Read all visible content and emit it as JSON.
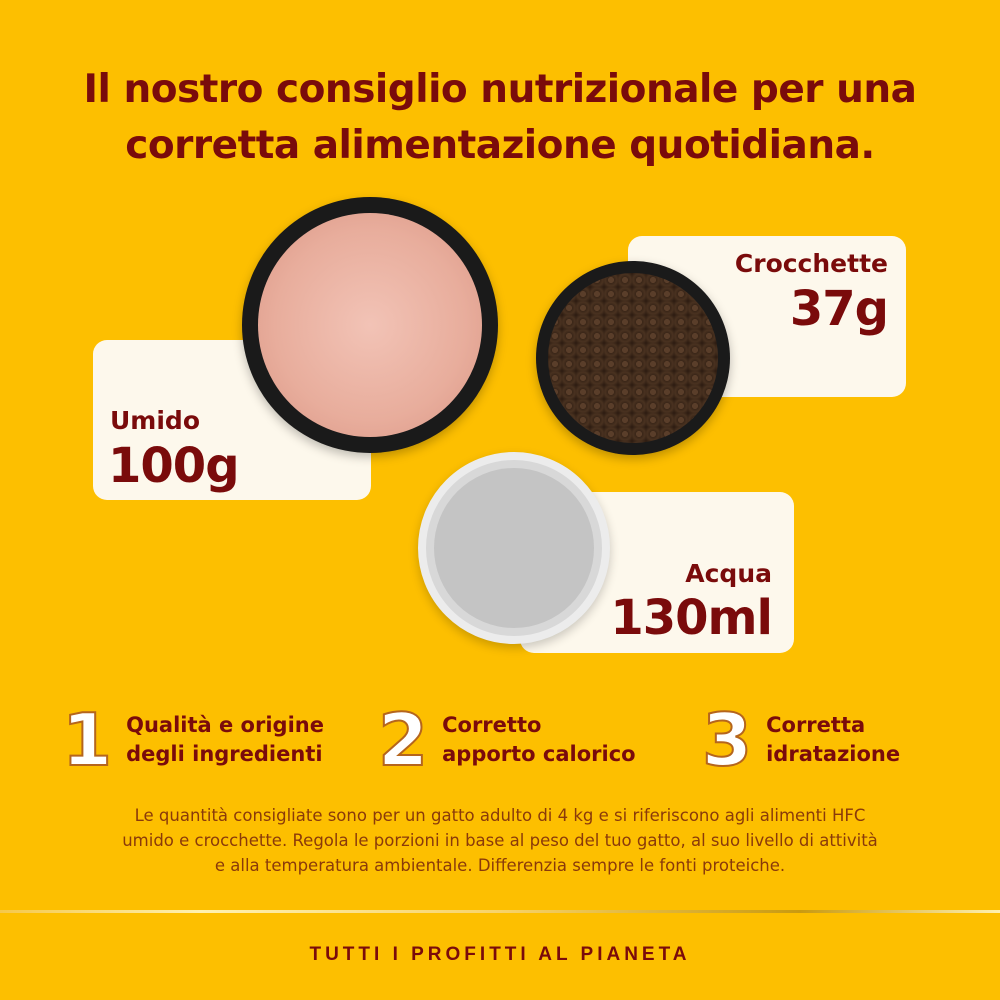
{
  "title": {
    "line1": "Il nostro consiglio nutrizionale per una",
    "line2": "corretta alimentazione quotidiana."
  },
  "portions": [
    {
      "label": "Umido",
      "value": "100g"
    },
    {
      "label": "Crocchette",
      "value": "37g"
    },
    {
      "label": "Acqua",
      "value": "130ml"
    }
  ],
  "features": [
    {
      "number": "1",
      "line1": "Qualità e origine",
      "line2": "degli ingredienti"
    },
    {
      "number": "2",
      "line1": "Corretto",
      "line2": "apporto calorico"
    },
    {
      "number": "3",
      "line1": "Corretta",
      "line2": "idratazione"
    }
  ],
  "disclaimer": {
    "line1": "Le quantità consigliate sono per un gatto adulto di 4 kg e si riferiscono agli alimenti HFC",
    "line2": "umido e crocchette. Regola le porzioni in base al peso del tuo gatto, al suo livello di attività",
    "line3": "e alla temperatura ambientale. Differenzia sempre le fonti proteiche."
  },
  "footer": "TUTTI I PROFITTI AL PIANETA",
  "colors": {
    "background": "#FDBF00",
    "text": "#7A0B0B",
    "card": "#FDF8EC"
  }
}
